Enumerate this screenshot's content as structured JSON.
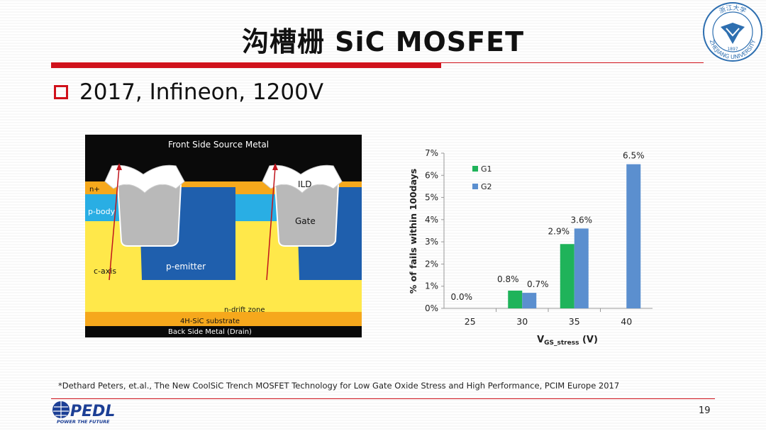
{
  "slide": {
    "title": "沟槽栅 SiC MOSFET",
    "bullet": "2017, Infineon, 1200V",
    "footnote": "*Dethard Peters, et.al., The New CoolSiC Trench MOSFET Technology for Low Gate Oxide Stress and High Performance, PCIM Europe 2017",
    "page_number": "19"
  },
  "logos": {
    "pedl_text": "PEDL",
    "pedl_tagline": "POWER THE FUTURE",
    "seal_text": "ZHEJIANG UNIVERSITY",
    "seal_year": "1897",
    "seal_chinese": "浙江大学"
  },
  "diagram": {
    "labels": {
      "front_metal": "Front Side Source Metal",
      "n_plus": "n+",
      "p_body": "p-body",
      "ild": "ILD",
      "gate": "Gate",
      "p_emitter": "p-emitter",
      "c_axis": "c-axis",
      "n_drift": "n-drift zone",
      "substrate": "4H-SiC substrate",
      "back_metal": "Back Side Metal (Drain)"
    },
    "colors": {
      "metal": "#0a0a0a",
      "n_plus": "#f6a81c",
      "p_body": "#29aee4",
      "drift": "#ffe84a",
      "substrate": "#f6a81c",
      "p_emitter": "#1f5fad",
      "gate": "#b9b9b9",
      "ild": "#ffffff",
      "axis_arrow": "#c0141c"
    }
  },
  "chart_data": {
    "type": "bar",
    "categories": [
      "25",
      "30",
      "35",
      "40"
    ],
    "series": [
      {
        "name": "G1",
        "color": "#1fb35a",
        "values": [
          0.0,
          0.8,
          2.9,
          null
        ]
      },
      {
        "name": "G2",
        "color": "#5b8fcf",
        "values": [
          null,
          0.7,
          3.6,
          6.5
        ]
      }
    ],
    "data_labels": [
      {
        "category": "25",
        "series": "G1",
        "text": "0.0%"
      },
      {
        "category": "30",
        "series": "G1",
        "text": "0.8%"
      },
      {
        "category": "30",
        "series": "G2",
        "text": "0.7%"
      },
      {
        "category": "35",
        "series": "G1",
        "text": "2.9%"
      },
      {
        "category": "35",
        "series": "G2",
        "text": "3.6%"
      },
      {
        "category": "40",
        "series": "G2",
        "text": "6.5%"
      }
    ],
    "ylim": [
      0,
      7
    ],
    "yticks": [
      "0%",
      "1%",
      "2%",
      "3%",
      "4%",
      "5%",
      "6%",
      "7%"
    ],
    "ylabel": "% of fails within 100days",
    "xlabel_main": "V",
    "xlabel_sub": "GS_stress",
    "xlabel_unit": " (V)",
    "legend_position": "top-left",
    "grid": false
  }
}
